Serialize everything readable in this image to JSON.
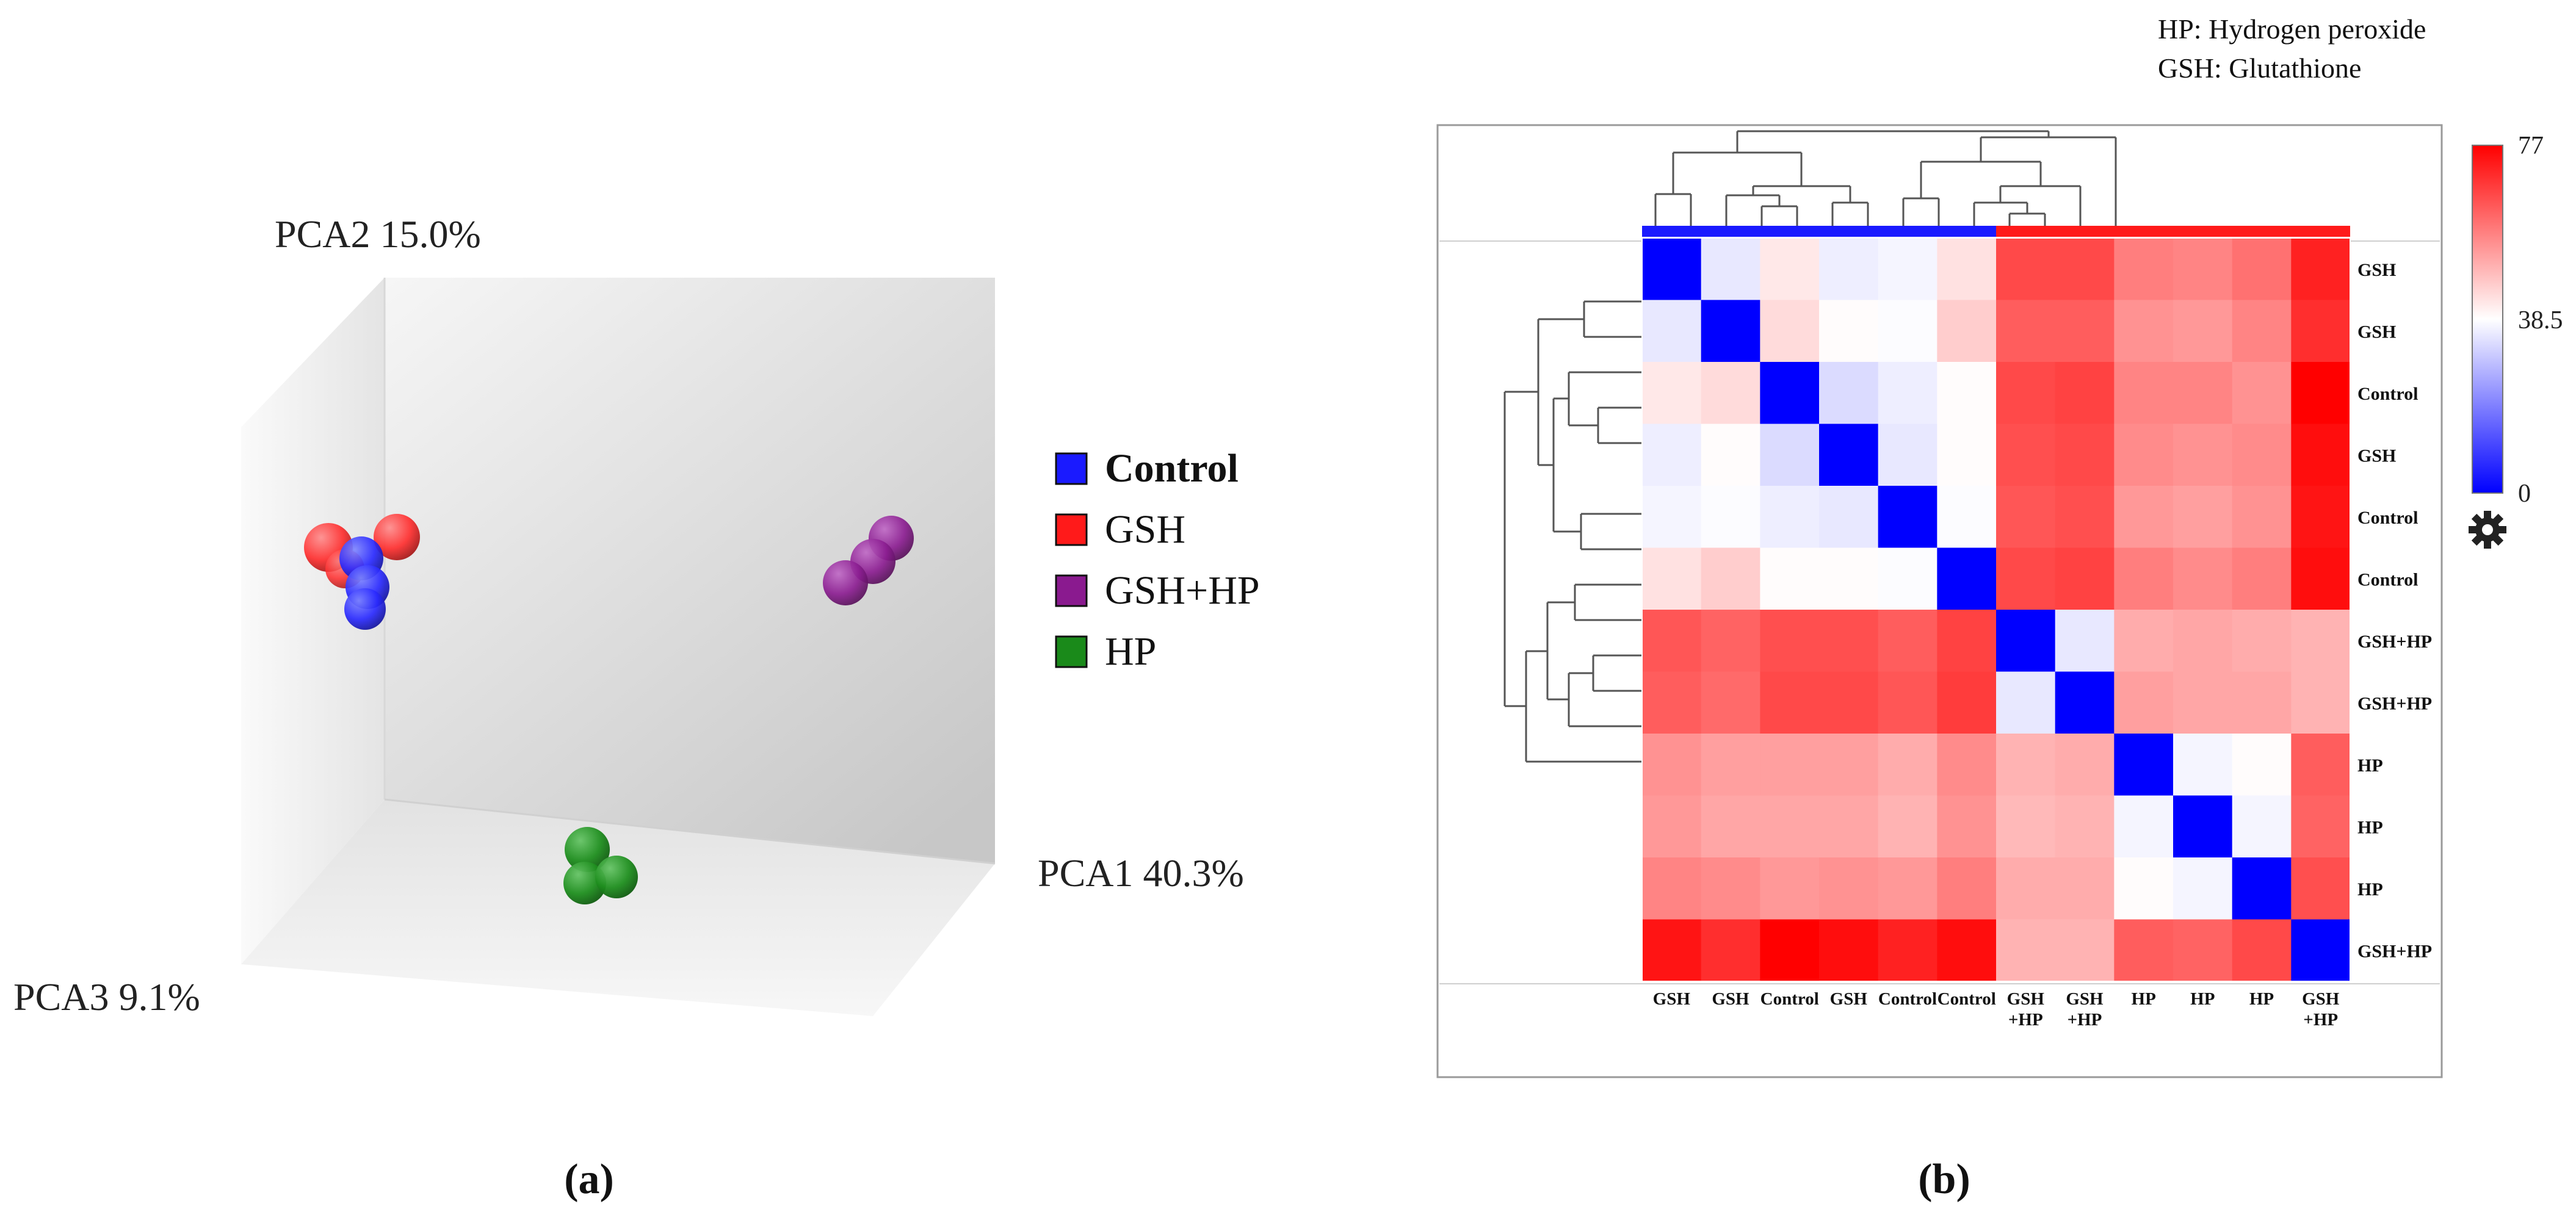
{
  "notes": {
    "line1": "HP: Hydrogen peroxide",
    "line2": "GSH: Glutathione"
  },
  "panel_labels": {
    "a": "(a)",
    "b": "(b)"
  },
  "chart_data": [
    {
      "type": "scatter",
      "title": "",
      "axes": {
        "x": "PCA1 40.3%",
        "y": "PCA2 15.0%",
        "z": "PCA3 9.1%"
      },
      "legend": [
        {
          "name": "Control",
          "color": "#1a1aff"
        },
        {
          "name": "GSH",
          "color": "#ff1a1a"
        },
        {
          "name": "GSH+HP",
          "color": "#8a1a8f"
        },
        {
          "name": "HP",
          "color": "#1a8a1a"
        }
      ],
      "groups": [
        {
          "name": "GSH",
          "points_shown": 3
        },
        {
          "name": "Control",
          "points_shown": 3
        },
        {
          "name": "GSH+HP",
          "points_shown": 3
        },
        {
          "name": "HP",
          "points_shown": 3
        }
      ]
    },
    {
      "type": "heatmap",
      "title": "",
      "rows": [
        "GSH",
        "GSH",
        "Control",
        "GSH",
        "Control",
        "Control",
        "GSH+HP",
        "GSH+HP",
        "HP",
        "HP",
        "HP",
        "GSH+HP"
      ],
      "columns": [
        "GSH",
        "GSH",
        "Control",
        "GSH",
        "Control",
        "Control",
        "GSH +HP",
        "GSH +HP",
        "HP",
        "HP",
        "HP",
        "GSH +HP"
      ],
      "column_groups": [
        {
          "span": [
            0,
            5
          ],
          "color": "#1a1aff"
        },
        {
          "span": [
            6,
            11
          ],
          "color": "#ff1a1a"
        }
      ],
      "colorbar": {
        "min": 0,
        "mid": 38.5,
        "max": 77,
        "min_label": "0",
        "mid_label": "38.5",
        "max_label": "77"
      },
      "values": [
        [
          0,
          35,
          42,
          36,
          37,
          43,
          66,
          66,
          58,
          57,
          60,
          72
        ],
        [
          35,
          0,
          44,
          39,
          38,
          46,
          63,
          63,
          55,
          54,
          57,
          70
        ],
        [
          42,
          44,
          0,
          33,
          36,
          39,
          66,
          67,
          57,
          57,
          55,
          77
        ],
        [
          36,
          39,
          33,
          0,
          35,
          39,
          65,
          66,
          56,
          55,
          56,
          75
        ],
        [
          37,
          38,
          36,
          35,
          0,
          38,
          64,
          65,
          54,
          53,
          55,
          74
        ],
        [
          43,
          46,
          39,
          39,
          38,
          0,
          66,
          67,
          58,
          56,
          58,
          75
        ],
        [
          64,
          62,
          65,
          65,
          63,
          67,
          0,
          35,
          51,
          52,
          51,
          50
        ],
        [
          63,
          61,
          66,
          66,
          64,
          68,
          35,
          0,
          53,
          52,
          52,
          50
        ],
        [
          55,
          53,
          53,
          53,
          51,
          56,
          50,
          51,
          0,
          37,
          39,
          63
        ],
        [
          54,
          52,
          52,
          52,
          50,
          55,
          49,
          50,
          37,
          0,
          37,
          62
        ],
        [
          57,
          56,
          54,
          55,
          54,
          58,
          51,
          51,
          39,
          37,
          0,
          65
        ],
        [
          74,
          70,
          77,
          75,
          72,
          75,
          50,
          50,
          63,
          62,
          66,
          0
        ]
      ]
    }
  ]
}
